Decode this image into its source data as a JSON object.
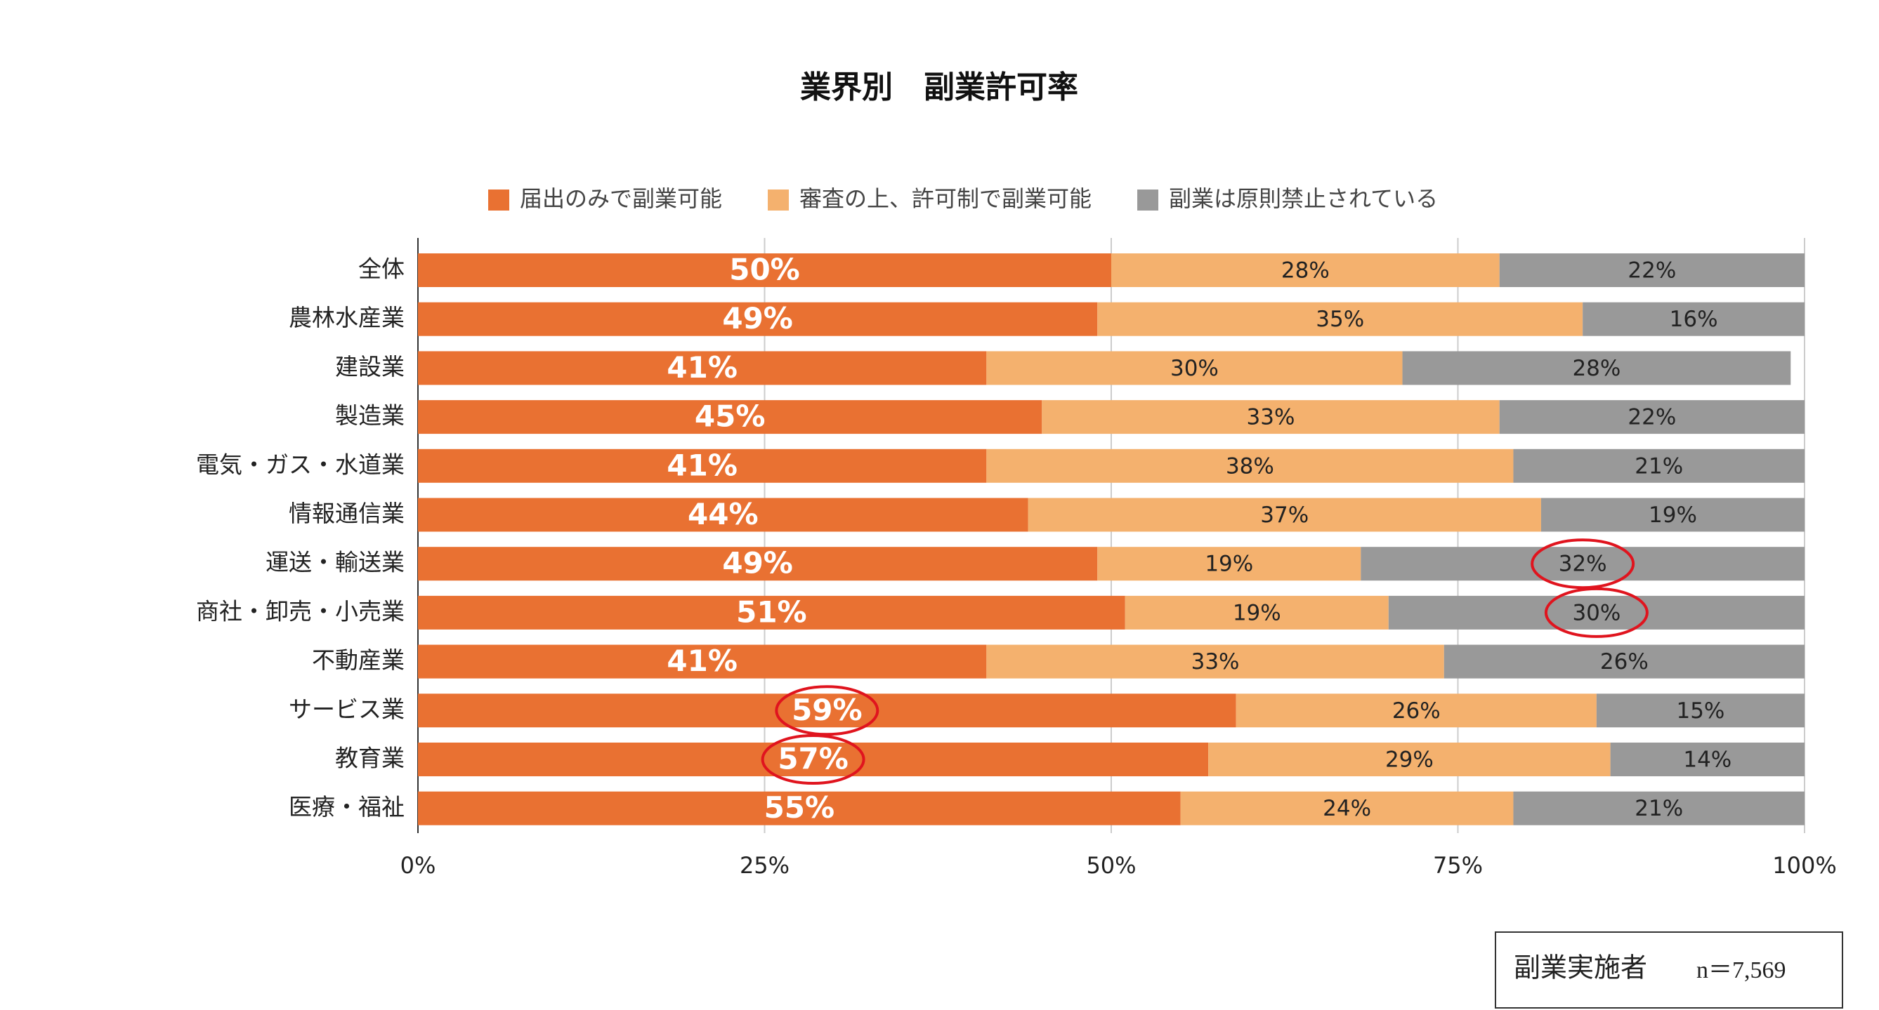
{
  "chart_data": {
    "type": "stacked-bar-horizontal",
    "title": "業界別　副業許可率",
    "categories": [
      "全体",
      "農林水産業",
      "建設業",
      "製造業",
      "電気・ガス・水道業",
      "情報通信業",
      "運送・輸送業",
      "商社・卸売・小売業",
      "不動産業",
      "サービス業",
      "教育業",
      "医療・福祉"
    ],
    "series": [
      {
        "name": "届出のみで副業可能",
        "color": "#e97132",
        "values": [
          50,
          49,
          41,
          45,
          41,
          44,
          49,
          51,
          41,
          59,
          57,
          55
        ],
        "value_labels": [
          "50%",
          "49%",
          "41%",
          "45%",
          "41%",
          "44%",
          "49%",
          "51%",
          "41%",
          "59%",
          "57%",
          "55%"
        ]
      },
      {
        "name": "審査の上、許可制で副業可能",
        "color": "#f4b16e",
        "values": [
          28,
          35,
          30,
          33,
          38,
          37,
          19,
          19,
          33,
          26,
          29,
          24
        ],
        "value_labels": [
          "28%",
          "35%",
          "30%",
          "33%",
          "38%",
          "37%",
          "19%",
          "19%",
          "33%",
          "26%",
          "29%",
          "24%"
        ]
      },
      {
        "name": "副業は原則禁止されている",
        "color": "#999999",
        "values": [
          22,
          16,
          28,
          22,
          21,
          19,
          32,
          30,
          26,
          15,
          14,
          21
        ],
        "value_labels": [
          "22%",
          "16%",
          "28%",
          "22%",
          "21%",
          "19%",
          "32%",
          "30%",
          "26%",
          "15%",
          "14%",
          "21%"
        ]
      }
    ],
    "xlim": [
      0,
      100
    ],
    "xticks": [
      {
        "value": 0,
        "label": "0%"
      },
      {
        "value": 25,
        "label": "25%"
      },
      {
        "value": 50,
        "label": "50%"
      },
      {
        "value": 75,
        "label": "75%"
      },
      {
        "value": 100,
        "label": "100%"
      }
    ],
    "grid": true,
    "note": {
      "group": "副業実施者",
      "sample": "n＝7,569"
    }
  }
}
